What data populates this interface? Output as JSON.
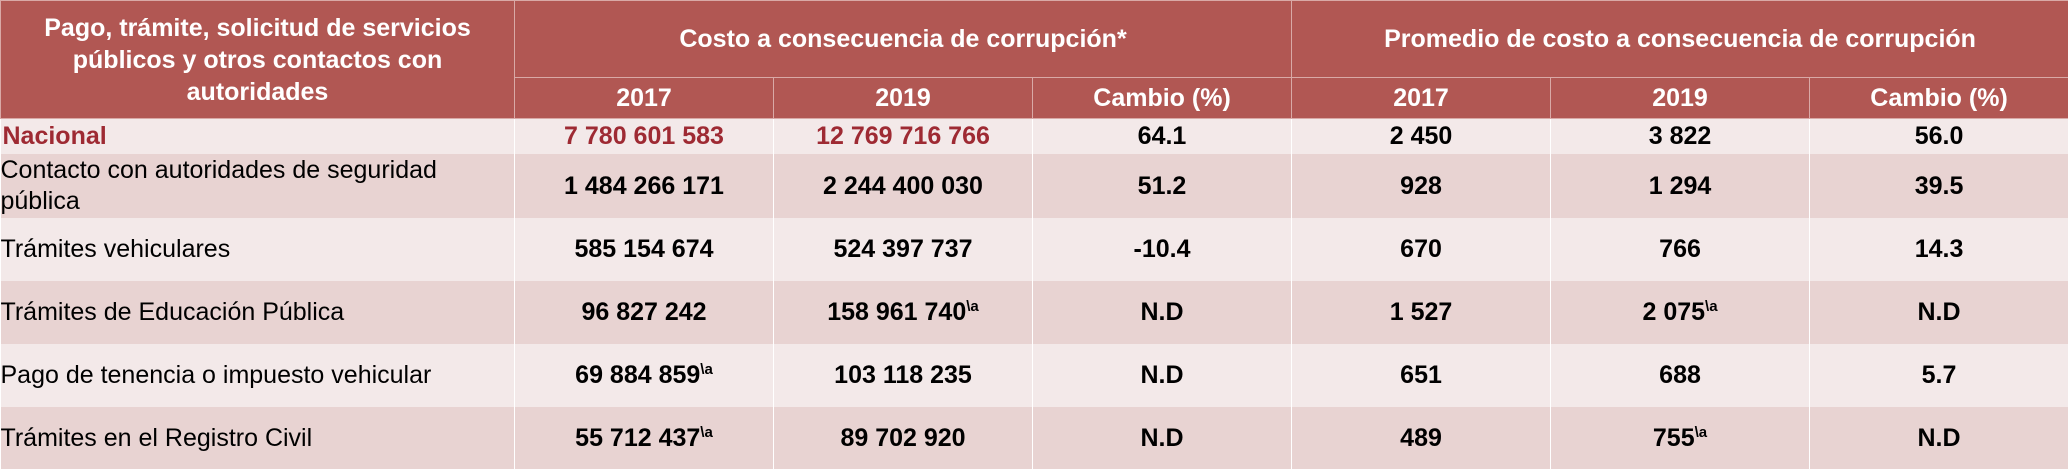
{
  "header": {
    "row_header": "Pago, trámite, solicitud de servicios públicos y otros contactos con autoridades",
    "group_costo": "Costo a consecuencia de corrupción*",
    "group_promedio": "Promedio de costo a consecuencia de corrupción",
    "year_a": "2017",
    "year_b": "2019",
    "cambio": "Cambio (%)"
  },
  "rows": [
    {
      "label": "Nacional",
      "costo_2017": "7 780 601 583",
      "costo_2017_note": "",
      "costo_2019": "12 769 716 766",
      "costo_2019_note": "",
      "costo_cambio": "64.1",
      "prom_2017": "2 450",
      "prom_2017_note": "",
      "prom_2019": "3 822",
      "prom_2019_note": "",
      "prom_cambio": "56.0"
    },
    {
      "label": "Contacto con autoridades de seguridad pública",
      "costo_2017": "1 484 266 171",
      "costo_2017_note": "",
      "costo_2019": "2 244 400 030",
      "costo_2019_note": "",
      "costo_cambio": "51.2",
      "prom_2017": "928",
      "prom_2017_note": "",
      "prom_2019": "1 294",
      "prom_2019_note": "",
      "prom_cambio": "39.5"
    },
    {
      "label": "Trámites vehiculares",
      "costo_2017": "585 154 674",
      "costo_2017_note": "",
      "costo_2019": "524 397 737",
      "costo_2019_note": "",
      "costo_cambio": "-10.4",
      "prom_2017": "670",
      "prom_2017_note": "",
      "prom_2019": "766",
      "prom_2019_note": "",
      "prom_cambio": "14.3"
    },
    {
      "label": "Trámites de Educación Pública",
      "costo_2017": "96 827 242",
      "costo_2017_note": "",
      "costo_2019": "158 961 740",
      "costo_2019_note": "\\a",
      "costo_cambio": "N.D",
      "prom_2017": "1 527",
      "prom_2017_note": "",
      "prom_2019": "2 075",
      "prom_2019_note": "\\a",
      "prom_cambio": "N.D"
    },
    {
      "label": "Pago de tenencia o impuesto vehicular",
      "costo_2017": "69 884 859",
      "costo_2017_note": "\\a",
      "costo_2019": "103 118 235",
      "costo_2019_note": "",
      "costo_cambio": "N.D",
      "prom_2017": "651",
      "prom_2017_note": "",
      "prom_2019": "688",
      "prom_2019_note": "",
      "prom_cambio": "5.7"
    },
    {
      "label": "Trámites en el Registro Civil",
      "costo_2017": "55 712 437",
      "costo_2017_note": "\\a",
      "costo_2019": "89 702 920",
      "costo_2019_note": "",
      "costo_cambio": "N.D",
      "prom_2017": "489",
      "prom_2017_note": "",
      "prom_2019": "755",
      "prom_2019_note": "\\a",
      "prom_cambio": "N.D"
    }
  ]
}
